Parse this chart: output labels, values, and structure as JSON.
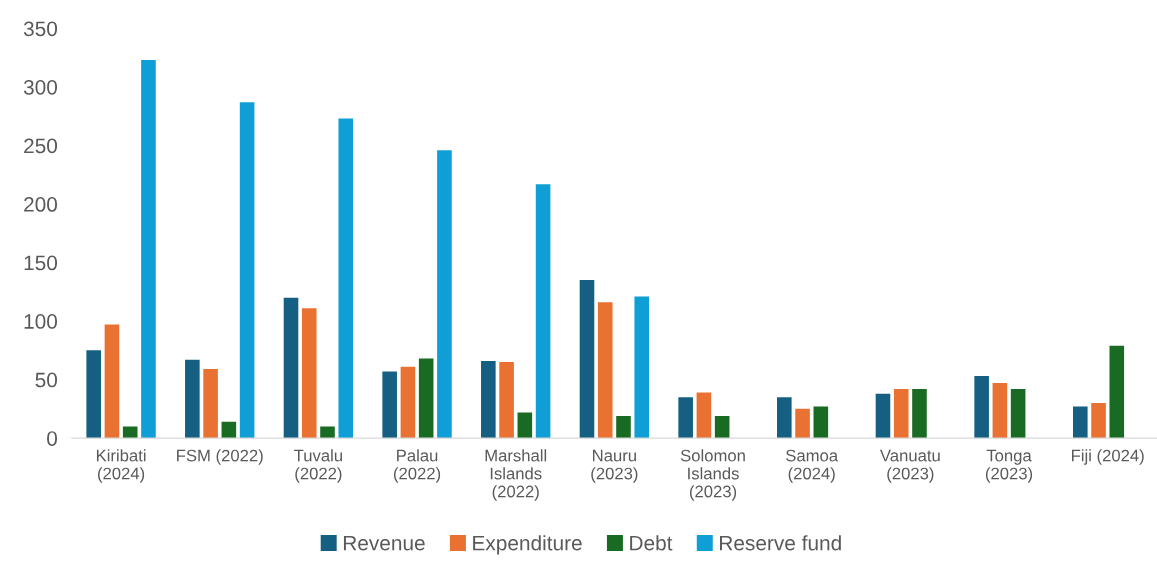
{
  "chart_data": {
    "type": "bar",
    "categories": [
      "Kiribati\n(2024)",
      "FSM (2022)",
      "Tuvalu\n(2022)",
      "Palau\n(2022)",
      "Marshall\nIslands\n(2022)",
      "Nauru\n(2023)",
      "Solomon\nIslands\n(2023)",
      "Samoa\n(2024)",
      "Vanuatu\n(2023)",
      "Tonga\n(2023)",
      "Fiji (2024)"
    ],
    "series": [
      {
        "name": "Revenue",
        "color": "#156082",
        "values": [
          75,
          67,
          120,
          57,
          66,
          135,
          35,
          35,
          38,
          53,
          27
        ]
      },
      {
        "name": "Expenditure",
        "color": "#e97132",
        "values": [
          97,
          59,
          111,
          61,
          65,
          116,
          39,
          25,
          42,
          47,
          30
        ]
      },
      {
        "name": "Debt",
        "color": "#196b24",
        "values": [
          10,
          14,
          10,
          68,
          22,
          19,
          19,
          27,
          42,
          42,
          79
        ]
      },
      {
        "name": "Reserve fund",
        "color": "#0f9ed5",
        "values": [
          323,
          287,
          273,
          246,
          217,
          121,
          null,
          null,
          null,
          null,
          null
        ]
      }
    ],
    "ylim": [
      0,
      350
    ],
    "yticks": [
      0,
      50,
      100,
      150,
      200,
      250,
      300,
      350
    ],
    "grid": false,
    "legend": "bottom"
  }
}
